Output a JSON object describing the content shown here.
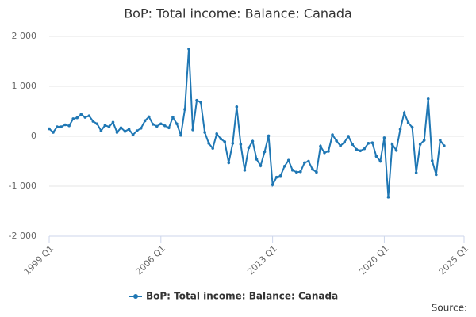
{
  "chart_data": {
    "type": "line",
    "title": "BoP: Total income: Balance: Canada",
    "categories": [
      "1999 Q1",
      null,
      null,
      null,
      null,
      null,
      null,
      null,
      null,
      null,
      null,
      null,
      null,
      null,
      null,
      null,
      null,
      null,
      null,
      null,
      null,
      null,
      null,
      null,
      null,
      null,
      null,
      null,
      "2006 Q1",
      null,
      null,
      null,
      null,
      null,
      null,
      null,
      null,
      null,
      null,
      null,
      null,
      null,
      null,
      null,
      null,
      null,
      null,
      null,
      null,
      null,
      null,
      null,
      null,
      null,
      null,
      null,
      "2013 Q1",
      null,
      null,
      null,
      null,
      null,
      null,
      null,
      null,
      null,
      null,
      null,
      null,
      null,
      null,
      null,
      null,
      null,
      null,
      null,
      null,
      null,
      null,
      null,
      null,
      null,
      null,
      null,
      "2020 Q1",
      null,
      null,
      null,
      null,
      null,
      null,
      null,
      null,
      null,
      null,
      null,
      null,
      null,
      null,
      null,
      null,
      null,
      null,
      null,
      "2025 Q1"
    ],
    "series": [
      {
        "name": "BoP: Total income: Balance: Canada",
        "color": "#1f77b4",
        "values": [
          150,
          80,
          190,
          190,
          230,
          210,
          350,
          370,
          440,
          380,
          410,
          300,
          250,
          110,
          220,
          190,
          280,
          80,
          170,
          100,
          140,
          30,
          110,
          160,
          310,
          390,
          240,
          200,
          250,
          210,
          170,
          380,
          250,
          20,
          540,
          1750,
          130,
          720,
          680,
          80,
          -140,
          -240,
          50,
          -50,
          -110,
          -530,
          -140,
          590,
          -160,
          -680,
          -230,
          -100,
          -460,
          -590,
          -310,
          10,
          -970,
          -820,
          -790,
          -600,
          -480,
          -680,
          -720,
          -710,
          -530,
          -500,
          -660,
          -720,
          -200,
          -330,
          -300,
          30,
          -90,
          -190,
          -120,
          0,
          -160,
          -260,
          -290,
          -250,
          -140,
          -130,
          -400,
          -500,
          -30,
          -1220,
          -160,
          -280,
          140,
          470,
          270,
          180,
          -730,
          -160,
          -80,
          750,
          -490,
          -770,
          -80,
          -190,
          null,
          null,
          null,
          null,
          null
        ]
      }
    ],
    "ylim": [
      -2000,
      2000
    ],
    "yticks": [
      {
        "value": -2000,
        "label": "-2 000"
      },
      {
        "value": -1000,
        "label": "-1 000"
      },
      0,
      {
        "value": 1000,
        "label": "1 000"
      },
      {
        "value": 2000,
        "label": "2 000"
      }
    ],
    "grid": true,
    "legend": "bottom",
    "source": "Source:"
  }
}
